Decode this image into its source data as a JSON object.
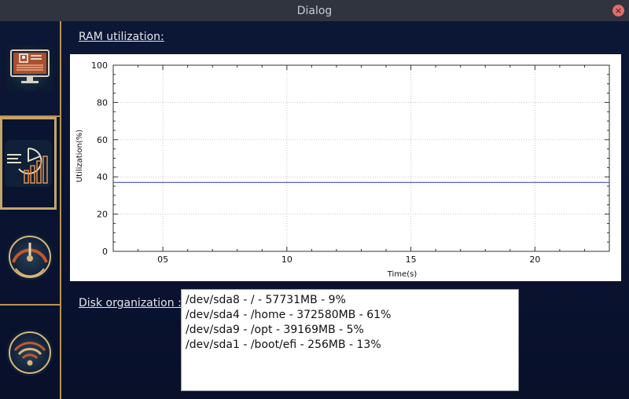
{
  "window": {
    "title": "Dialog",
    "close_label": "×"
  },
  "sidebar": {
    "items": [
      {
        "name": "system-info",
        "icon": "monitor-profile-icon",
        "selected": false
      },
      {
        "name": "resources",
        "icon": "analytics-chart-icon",
        "selected": true
      },
      {
        "name": "performance",
        "icon": "speedometer-gauge-icon",
        "selected": false
      },
      {
        "name": "network",
        "icon": "wifi-signal-icon",
        "selected": false
      }
    ],
    "accent_color": "#b8924e"
  },
  "ram": {
    "label": "RAM utilization:"
  },
  "disk": {
    "label": "Disk organization :",
    "entries": [
      "/dev/sda8 - / - 57731MB - 9%",
      "/dev/sda4 - /home - 372580MB - 61%",
      "/dev/sda9 - /opt - 39169MB - 5%",
      "/dev/sda1 - /boot/efi - 256MB - 13%"
    ]
  },
  "chart_data": {
    "type": "line",
    "xlabel": "Time(s)",
    "ylabel": "Utilization(%)",
    "xlim": [
      3,
      23
    ],
    "ylim": [
      0,
      100
    ],
    "x_ticks": [
      5,
      10,
      15,
      20
    ],
    "x_tick_labels": [
      "05",
      "10",
      "15",
      "20"
    ],
    "y_ticks": [
      0,
      20,
      40,
      60,
      80,
      100
    ],
    "y_tick_labels": [
      "0",
      "20",
      "40",
      "60",
      "80",
      "100"
    ],
    "grid": true,
    "series": [
      {
        "x": [
          3,
          23
        ],
        "y": [
          37,
          37
        ],
        "color": "#4b50b0"
      }
    ]
  }
}
